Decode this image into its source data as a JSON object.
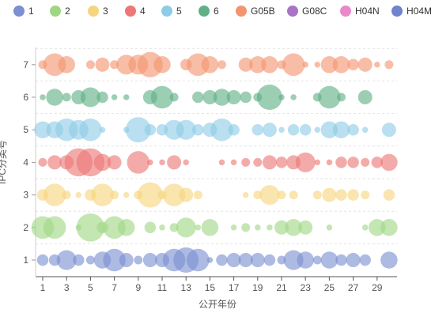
{
  "chart_data": {
    "type": "scatter",
    "subtype": "bubble",
    "xlabel": "公开年份",
    "ylabel": "IPC分类号",
    "x_ticks": [
      1,
      3,
      5,
      7,
      9,
      11,
      13,
      15,
      17,
      19,
      21,
      23,
      25,
      27,
      29
    ],
    "xlim": [
      1,
      30
    ],
    "y_categories": [
      "1",
      "2",
      "3",
      "4",
      "5",
      "6",
      "7"
    ],
    "grid": "horizontal dashed",
    "legend_position": "top",
    "legend": [
      {
        "name": "1",
        "color": "#7b8fd1"
      },
      {
        "name": "2",
        "color": "#9fd684"
      },
      {
        "name": "3",
        "color": "#f7d57e"
      },
      {
        "name": "4",
        "color": "#ec7776"
      },
      {
        "name": "5",
        "color": "#8ecbe6"
      },
      {
        "name": "6",
        "color": "#5fb086"
      },
      {
        "name": "G05B",
        "color": "#f4946f"
      },
      {
        "name": "G08C",
        "color": "#a974c6"
      },
      {
        "name": "H04N",
        "color": "#e889c9"
      },
      {
        "name": "H04M",
        "color": "#7083cf"
      }
    ],
    "series": [
      {
        "name": "1",
        "category": "1",
        "x": [
          1,
          2,
          3,
          4,
          5,
          6,
          7,
          8,
          9,
          10,
          11,
          12,
          13,
          14,
          15,
          16,
          17,
          18,
          19,
          20,
          21,
          22,
          23,
          24,
          25,
          26,
          27,
          28,
          30
        ],
        "size": [
          3,
          3,
          6,
          3,
          2,
          5,
          7,
          4,
          2,
          4,
          4,
          7,
          8,
          7,
          1,
          3,
          4,
          4,
          4,
          3,
          2,
          6,
          5,
          2,
          5,
          3,
          4,
          3,
          5
        ]
      },
      {
        "name": "2",
        "category": "2",
        "x": [
          1,
          2,
          4,
          5,
          6,
          7,
          8,
          10,
          11,
          12,
          13,
          14,
          15,
          17,
          18,
          19,
          20,
          21,
          22,
          23,
          25,
          28,
          29,
          30
        ],
        "size": [
          7,
          7,
          1,
          9,
          3,
          7,
          5,
          3,
          1,
          2,
          6,
          1,
          5,
          1,
          2,
          1,
          1,
          4,
          5,
          4,
          1,
          1,
          5,
          5
        ]
      },
      {
        "name": "3",
        "category": "3",
        "x": [
          1,
          2,
          3,
          4,
          5,
          6,
          7,
          8,
          9,
          10,
          11,
          12,
          13,
          14,
          18,
          19,
          20,
          21,
          22,
          24,
          25,
          26,
          27,
          28,
          30
        ],
        "size": [
          3,
          7,
          2,
          1,
          3,
          7,
          2,
          1,
          2,
          8,
          2,
          7,
          4,
          2,
          1,
          2,
          6,
          2,
          2,
          2,
          4,
          3,
          3,
          2,
          3
        ]
      },
      {
        "name": "4",
        "category": "4",
        "x": [
          1,
          2,
          3,
          4,
          5,
          6,
          7,
          9,
          10,
          11,
          12,
          13,
          16,
          17,
          18,
          19,
          20,
          21,
          22,
          23,
          24,
          25,
          26,
          27,
          28,
          29,
          30
        ],
        "size": [
          2,
          4,
          4,
          9,
          9,
          5,
          4,
          7,
          1,
          1,
          4,
          1,
          1,
          1,
          2,
          2,
          4,
          3,
          4,
          6,
          1,
          1,
          3,
          3,
          2,
          3,
          5
        ]
      },
      {
        "name": "5",
        "category": "5",
        "x": [
          1,
          2,
          3,
          4,
          5,
          6,
          8,
          9,
          10,
          11,
          12,
          13,
          14,
          15,
          16,
          17,
          19,
          20,
          21,
          22,
          23,
          24,
          25,
          26,
          27,
          28,
          30
        ],
        "size": [
          5,
          5,
          7,
          6,
          7,
          1,
          1,
          8,
          3,
          3,
          6,
          6,
          3,
          4,
          7,
          3,
          3,
          4,
          1,
          3,
          3,
          1,
          5,
          5,
          3,
          1,
          4
        ]
      },
      {
        "name": "6",
        "category": "6",
        "x": [
          1,
          2,
          3,
          4,
          5,
          6,
          7,
          8,
          10,
          11,
          12,
          14,
          15,
          16,
          17,
          18,
          19,
          20,
          21,
          22,
          24,
          25,
          26,
          28
        ],
        "size": [
          1,
          5,
          2,
          4,
          6,
          3,
          1,
          1,
          4,
          7,
          2,
          3,
          4,
          5,
          4,
          3,
          2,
          8,
          1,
          1,
          2,
          7,
          2,
          4
        ]
      },
      {
        "name": "G05B",
        "category": "7",
        "x": [
          1,
          2,
          3,
          5,
          6,
          7,
          8,
          9,
          10,
          11,
          13,
          14,
          15,
          16,
          18,
          19,
          20,
          21,
          22,
          23,
          24,
          25,
          26,
          27,
          28,
          29,
          30
        ],
        "size": [
          2,
          7,
          5,
          2,
          4,
          2,
          6,
          6,
          8,
          5,
          3,
          7,
          5,
          2,
          4,
          5,
          5,
          2,
          7,
          1,
          1,
          5,
          5,
          3,
          4,
          1,
          2
        ]
      }
    ]
  }
}
